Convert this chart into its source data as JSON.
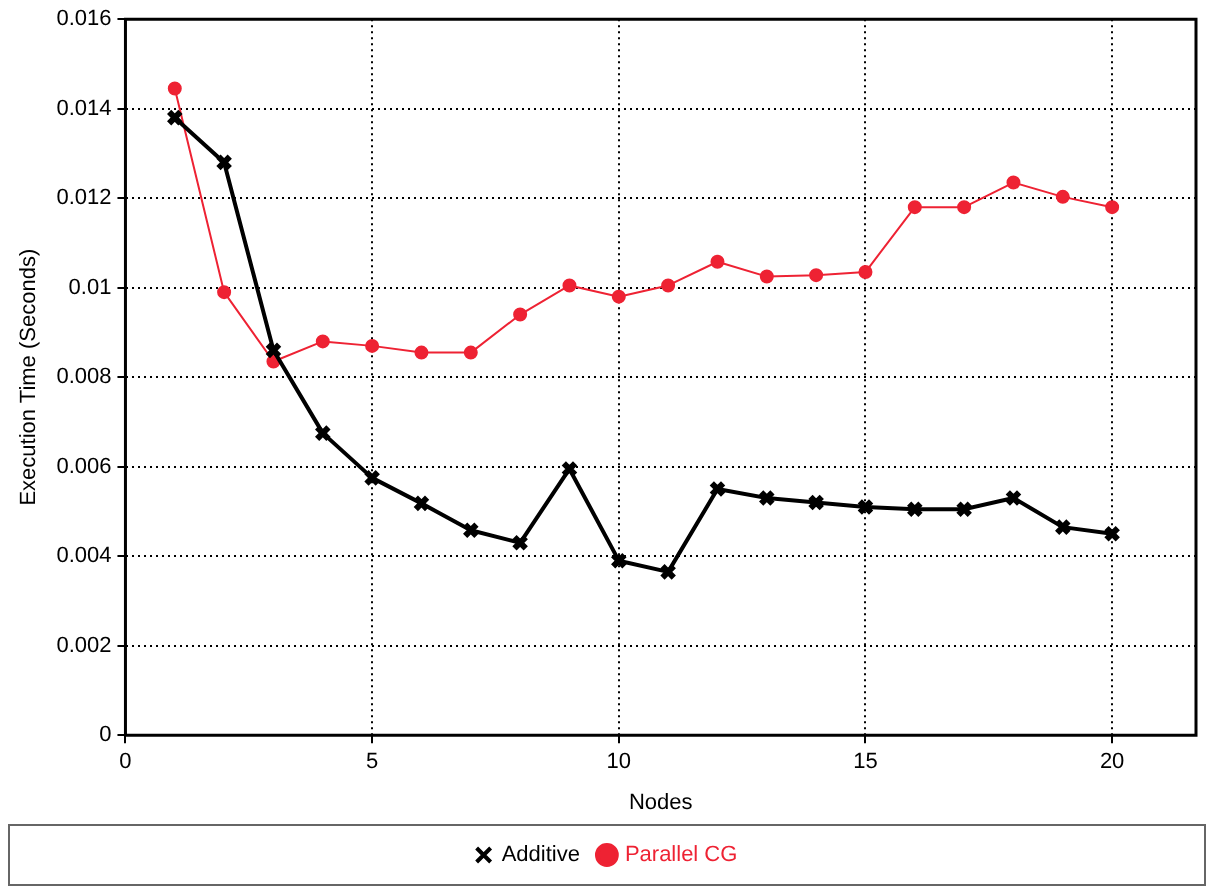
{
  "chart_data": {
    "type": "line",
    "xlabel": "Nodes",
    "ylabel": "Execution Time (Seconds)",
    "x": [
      1,
      2,
      3,
      4,
      5,
      6,
      7,
      8,
      9,
      10,
      11,
      12,
      13,
      14,
      15,
      16,
      17,
      18,
      19,
      20
    ],
    "series": [
      {
        "name": "Additive",
        "color": "#000000",
        "marker": "cross",
        "values": [
          0.0138,
          0.0128,
          0.0086,
          0.00675,
          0.00575,
          0.00518,
          0.00458,
          0.0043,
          0.00595,
          0.0039,
          0.00365,
          0.0055,
          0.0053,
          0.0052,
          0.0051,
          0.00505,
          0.00505,
          0.0053,
          0.00465,
          0.0045
        ]
      },
      {
        "name": "Parallel CG",
        "color": "#ee2233",
        "marker": "circle",
        "values": [
          0.01445,
          0.0099,
          0.00835,
          0.0088,
          0.0087,
          0.00855,
          0.00855,
          0.0094,
          0.01005,
          0.0098,
          0.01005,
          0.01058,
          0.01025,
          0.01028,
          0.01035,
          0.0118,
          0.0118,
          0.01235,
          0.01203,
          0.0118
        ]
      }
    ],
    "xlim": [
      0,
      21.7
    ],
    "xticks": [
      0,
      5,
      10,
      15,
      20
    ],
    "ylim": [
      0,
      0.016
    ],
    "yticks": [
      0,
      0.002,
      0.004,
      0.006,
      0.008,
      0.01,
      0.012,
      0.014,
      0.016
    ],
    "grid": true,
    "legend": "bottom",
    "line_style": "solid"
  }
}
